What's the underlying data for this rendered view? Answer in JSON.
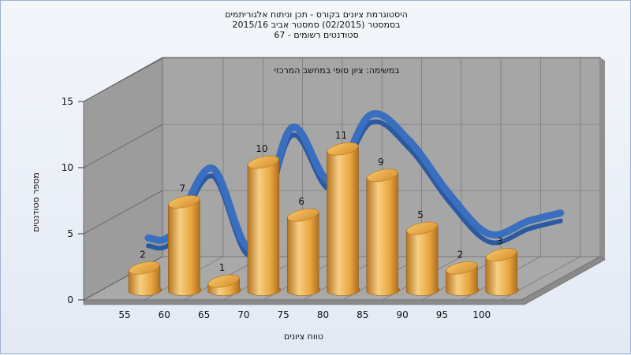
{
  "chart_data": {
    "type": "bar",
    "title_lines": [
      "היסטוגרמת ציונים בקורס - תכן וניתוח אלגוריתמים",
      "בסמסטר  (02/2015)  סמסטר אביב 2015/16",
      "סטודנטים רשומים - 67"
    ],
    "subtitle": "במשימה: ציון סופי במחשב המרכזי",
    "xlabel": "טווח ציונים",
    "ylabel": "מספר סטודנטים",
    "categories": [
      "55",
      "60",
      "65",
      "70",
      "75",
      "80",
      "85",
      "90",
      "95",
      "100"
    ],
    "values": [
      2,
      7,
      1,
      10,
      6,
      11,
      9,
      5,
      2,
      3
    ],
    "yticks": [
      "0",
      "5",
      "10",
      "15"
    ],
    "ylim": [
      0,
      15
    ],
    "grid": true,
    "three_d": true,
    "trend_curve": true,
    "colors": {
      "bar": "#e8a640",
      "bar_dark": "#b4731f",
      "bar_light": "#f6cf84",
      "curve": "#3a6fc0",
      "wall": "#a6a6a6",
      "floor": "#a9a9a9"
    }
  }
}
